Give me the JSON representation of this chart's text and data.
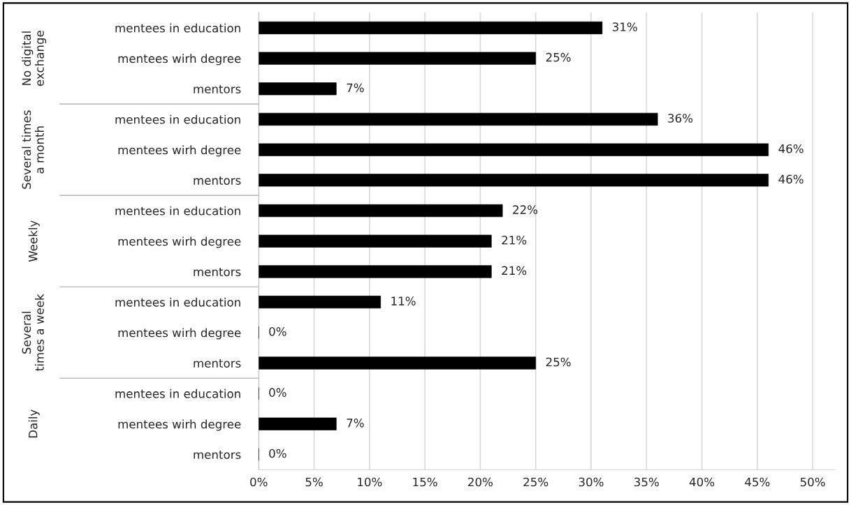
{
  "chart_data": {
    "type": "bar",
    "orientation": "horizontal",
    "categories": [
      "mentees in education",
      "mentees wirh degree",
      "mentors",
      "mentees in education",
      "mentees wirh degree",
      "mentors",
      "mentees in education",
      "mentees wirh degree",
      "mentors",
      "mentees in education",
      "mentees wirh degree",
      "mentors",
      "mentees in education",
      "mentees wirh degree",
      "mentors"
    ],
    "values": [
      31,
      25,
      7,
      36,
      46,
      46,
      22,
      21,
      21,
      11,
      0,
      25,
      0,
      7,
      0
    ],
    "value_labels": [
      "31%",
      "25%",
      "7%",
      "36%",
      "46%",
      "46%",
      "22%",
      "21%",
      "21%",
      "11%",
      "0%",
      "25%",
      "0%",
      "7%",
      "0%"
    ],
    "color": "#000000",
    "annotations": [
      "No digital exchange",
      "Several times a month",
      "Weekly",
      "Several times a week",
      "Daily"
    ],
    "xlim": [
      0,
      52
    ],
    "xticks": [
      {
        "value": 0,
        "label": "0%"
      },
      {
        "value": 5,
        "label": "5%"
      },
      {
        "value": 10,
        "label": "10%"
      },
      {
        "value": 15,
        "label": "15%"
      },
      {
        "value": 20,
        "label": "20%"
      },
      {
        "value": 25,
        "label": "25%"
      },
      {
        "value": 30,
        "label": "30%"
      },
      {
        "value": 35,
        "label": "35%"
      },
      {
        "value": 40,
        "label": "40%"
      },
      {
        "value": 45,
        "label": "45%"
      },
      {
        "value": 50,
        "label": "50%"
      }
    ],
    "grid": "x",
    "legend": false
  }
}
